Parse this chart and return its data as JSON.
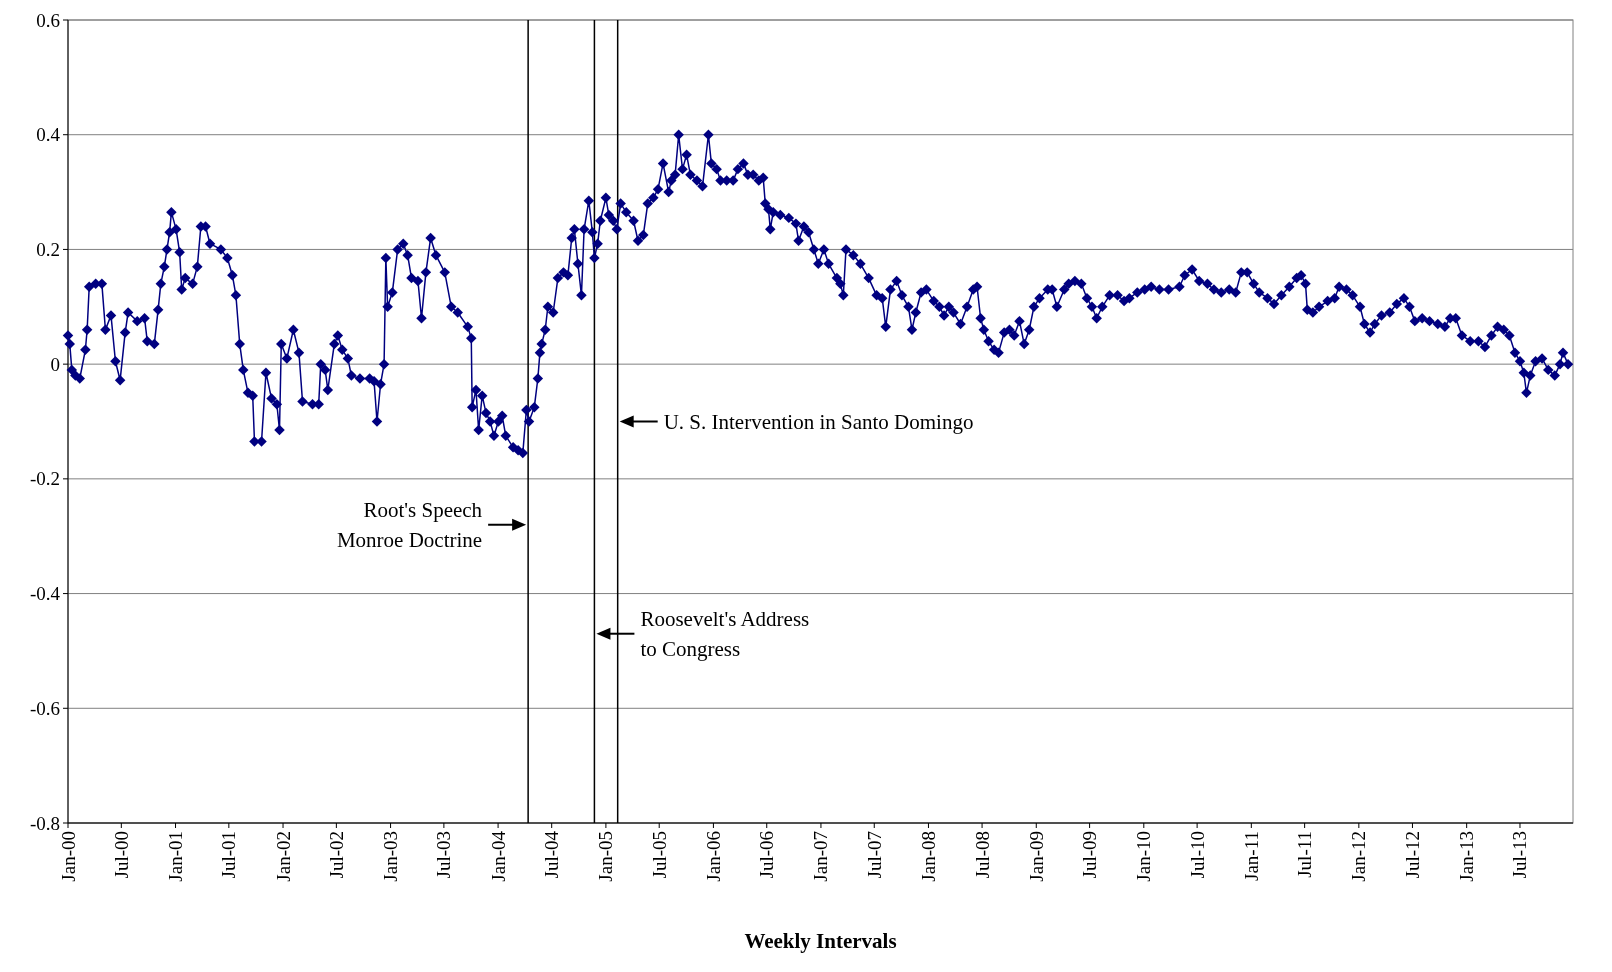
{
  "chart_data": {
    "type": "line",
    "xlabel": "Weekly Intervals",
    "xlim": [
      "1900-01-01",
      "1913-12-28"
    ],
    "xticks": [
      {
        "value": "1900-01",
        "label": "Jan-00"
      },
      {
        "value": "1900-07",
        "label": "Jul-00"
      },
      {
        "value": "1901-01",
        "label": "Jan-01"
      },
      {
        "value": "1901-07",
        "label": "Jul-01"
      },
      {
        "value": "1902-01",
        "label": "Jan-02"
      },
      {
        "value": "1902-07",
        "label": "Jul-02"
      },
      {
        "value": "1903-01",
        "label": "Jan-03"
      },
      {
        "value": "1903-07",
        "label": "Jul-03"
      },
      {
        "value": "1904-01",
        "label": "Jan-04"
      },
      {
        "value": "1904-07",
        "label": "Jul-04"
      },
      {
        "value": "1905-01",
        "label": "Jan-05"
      },
      {
        "value": "1905-07",
        "label": "Jul-05"
      },
      {
        "value": "1906-01",
        "label": "Jan-06"
      },
      {
        "value": "1906-07",
        "label": "Jul-06"
      },
      {
        "value": "1907-01",
        "label": "Jan-07"
      },
      {
        "value": "1907-07",
        "label": "Jul-07"
      },
      {
        "value": "1908-01",
        "label": "Jan-08"
      },
      {
        "value": "1908-07",
        "label": "Jul-08"
      },
      {
        "value": "1909-01",
        "label": "Jan-09"
      },
      {
        "value": "1909-07",
        "label": "Jul-09"
      },
      {
        "value": "1910-01",
        "label": "Jan-10"
      },
      {
        "value": "1910-07",
        "label": "Jul-10"
      },
      {
        "value": "1911-01",
        "label": "Jan-11"
      },
      {
        "value": "1911-07",
        "label": "Jul-11"
      },
      {
        "value": "1912-01",
        "label": "Jan-12"
      },
      {
        "value": "1912-07",
        "label": "Jul-12"
      },
      {
        "value": "1913-01",
        "label": "Jan-13"
      },
      {
        "value": "1913-07",
        "label": "Jul-13"
      }
    ],
    "ylim": [
      -0.8,
      0.6
    ],
    "yticks": [
      -0.8,
      -0.6,
      -0.4,
      -0.2,
      0,
      0.2,
      0.4,
      0.6
    ],
    "grid": "y",
    "marker": "diamond",
    "line_style": "solid",
    "ref_lines": [
      {
        "axis": "x",
        "value": "1904-04-12",
        "label": "Root's Speech\nMonroe Doctrine"
      },
      {
        "axis": "x",
        "value": "1904-11-23",
        "label": "Roosevelt's Address\nto Congress"
      },
      {
        "axis": "x",
        "value": "1905-02-10",
        "label": "U. S. Intervention in Santo Domingo"
      }
    ],
    "series": [
      {
        "color": "#000080",
        "x": [
          "1900-01-01",
          "1900-01-07",
          "1900-01-14",
          "1900-01-26",
          "1900-02-10",
          "1900-03-01",
          "1900-03-07",
          "1900-03-14",
          "1900-04-05",
          "1900-04-26",
          "1900-05-08",
          "1900-05-27",
          "1900-06-11",
          "1900-06-27",
          "1900-07-14",
          "1900-07-24",
          "1900-08-24",
          "1900-09-18",
          "1900-09-27",
          "1900-10-21",
          "1900-11-03",
          "1900-11-12",
          "1900-11-24",
          "1900-12-03",
          "1900-12-12",
          "1900-12-18",
          "1901-01-03",
          "1901-01-15",
          "1901-01-22",
          "1901-02-03",
          "1901-02-28",
          "1901-03-16",
          "1901-03-28",
          "1901-04-13",
          "1901-04-28",
          "1901-06-04",
          "1901-06-26",
          "1901-07-13",
          "1901-07-25",
          "1901-08-07",
          "1901-08-19",
          "1901-09-04",
          "1901-09-20",
          "1901-09-26",
          "1901-10-20",
          "1901-11-04",
          "1901-11-23",
          "1901-12-11",
          "1901-12-20",
          "1901-12-26",
          "1902-01-14",
          "1902-02-05",
          "1902-02-24",
          "1902-03-08",
          "1902-04-11",
          "1902-05-02",
          "1902-05-09",
          "1902-05-24",
          "1902-06-02",
          "1902-06-24",
          "1902-07-06",
          "1902-07-21",
          "1902-08-09",
          "1902-08-21",
          "1902-09-19",
          "1902-10-22",
          "1902-11-06",
          "1902-11-16",
          "1902-11-28",
          "1902-12-10",
          "1902-12-16",
          "1902-12-22",
          "1903-01-07",
          "1903-01-25",
          "1903-02-13",
          "1903-02-28",
          "1903-03-13",
          "1903-04-04",
          "1903-04-16",
          "1903-05-01",
          "1903-05-17",
          "1903-06-04",
          "1903-07-04",
          "1903-07-26",
          "1903-08-17",
          "1903-09-20",
          "1903-10-02",
          "1903-10-05",
          "1903-10-18",
          "1903-10-27",
          "1903-11-08",
          "1903-11-21",
          "1903-12-05",
          "1903-12-18",
          "1904-01-02",
          "1904-01-15",
          "1904-01-27",
          "1904-02-21",
          "1904-03-09",
          "1904-03-25",
          "1904-04-06",
          "1904-04-15",
          "1904-05-03",
          "1904-05-15",
          "1904-05-22",
          "1904-05-28",
          "1904-06-09",
          "1904-06-18",
          "1904-07-06",
          "1904-07-22",
          "1904-08-10",
          "1904-08-25",
          "1904-09-07",
          "1904-09-16",
          "1904-09-28",
          "1904-10-10",
          "1904-10-19",
          "1904-11-04",
          "1904-11-16",
          "1904-11-23",
          "1904-12-04",
          "1904-12-13",
          "1905-01-01",
          "1905-01-11",
          "1905-01-26",
          "1905-02-07",
          "1905-02-20",
          "1905-03-11",
          "1905-04-05",
          "1905-04-20",
          "1905-05-08",
          "1905-05-23",
          "1905-06-11",
          "1905-06-27",
          "1905-07-14",
          "1905-08-02",
          "1905-08-11",
          "1905-08-24",
          "1905-09-05",
          "1905-09-18",
          "1905-10-02",
          "1905-10-15",
          "1905-11-06",
          "1905-11-25",
          "1905-12-15",
          "1905-12-25",
          "1906-01-12",
          "1906-01-25",
          "1906-02-15",
          "1906-03-09",
          "1906-03-25",
          "1906-04-13",
          "1906-04-28",
          "1906-05-16",
          "1906-06-04",
          "1906-06-19",
          "1906-06-26",
          "1906-07-07",
          "1906-07-13",
          "1906-07-23",
          "1906-08-16",
          "1906-09-14",
          "1906-10-08",
          "1906-10-17",
          "1906-11-04",
          "1906-11-20",
          "1906-12-08",
          "1906-12-23",
          "1907-01-11",
          "1907-01-27",
          "1907-02-24",
          "1907-03-08",
          "1907-03-18",
          "1907-03-27",
          "1907-04-21",
          "1907-05-15",
          "1907-06-12",
          "1907-07-09",
          "1907-07-28",
          "1907-08-09",
          "1907-08-25",
          "1907-09-15",
          "1907-10-03",
          "1907-10-25",
          "1907-11-06",
          "1907-11-19",
          "1907-12-07",
          "1907-12-25",
          "1908-01-19",
          "1908-02-07",
          "1908-02-23",
          "1908-03-10",
          "1908-03-26",
          "1908-04-19",
          "1908-05-11",
          "1908-06-01",
          "1908-06-14",
          "1908-06-26",
          "1908-07-07",
          "1908-07-23",
          "1908-08-11",
          "1908-08-26",
          "1908-09-14",
          "1908-10-02",
          "1908-10-18",
          "1908-11-05",
          "1908-11-21",
          "1908-12-08",
          "1908-12-24",
          "1909-01-12",
          "1909-02-09",
          "1909-02-24",
          "1909-03-12",
          "1909-04-06",
          "1909-04-21",
          "1909-05-12",
          "1909-06-03",
          "1909-06-22",
          "1909-07-09",
          "1909-07-25",
          "1909-08-13",
          "1909-09-07",
          "1909-10-04",
          "1909-10-26",
          "1909-11-13",
          "1909-12-10",
          "1910-01-04",
          "1910-01-26",
          "1910-02-23",
          "1910-03-26",
          "1910-05-02",
          "1910-05-20",
          "1910-06-14",
          "1910-07-08",
          "1910-08-05",
          "1910-08-27",
          "1910-09-21",
          "1910-10-18",
          "1910-11-09",
          "1910-11-28",
          "1910-12-18",
          "1911-01-09",
          "1911-01-28",
          "1911-02-25",
          "1911-03-19",
          "1911-04-13",
          "1911-05-10",
          "1911-06-04",
          "1911-06-19",
          "1911-07-04",
          "1911-07-10",
          "1911-07-29",
          "1911-08-19",
          "1911-09-17",
          "1911-10-11",
          "1911-10-26",
          "1911-11-20",
          "1911-12-11",
          "1912-01-05",
          "1912-01-20",
          "1912-02-08",
          "1912-02-24",
          "1912-03-18",
          "1912-04-15",
          "1912-05-09",
          "1912-06-02",
          "1912-06-21",
          "1912-07-09",
          "1912-08-03",
          "1912-08-28",
          "1912-09-25",
          "1912-10-19",
          "1912-11-06",
          "1912-11-25",
          "1912-12-16",
          "1913-01-13",
          "1913-02-10",
          "1913-03-04",
          "1913-03-26",
          "1913-04-16",
          "1913-05-07",
          "1913-05-26",
          "1913-06-14",
          "1913-07-01",
          "1913-07-14",
          "1913-07-23",
          "1913-08-05",
          "1913-08-23",
          "1913-09-14",
          "1913-10-05",
          "1913-10-27",
          "1913-11-14",
          "1913-11-24",
          "1913-12-11"
        ],
        "values": [
          0.05,
          0.035,
          -0.01,
          -0.02,
          -0.025,
          0.025,
          0.06,
          0.135,
          0.14,
          0.14,
          0.06,
          0.085,
          0.005,
          -0.028,
          0.055,
          0.09,
          0.075,
          0.08,
          0.04,
          0.035,
          0.095,
          0.14,
          0.17,
          0.2,
          0.23,
          0.265,
          0.235,
          0.195,
          0.13,
          0.15,
          0.14,
          0.17,
          0.24,
          0.24,
          0.21,
          0.2,
          0.185,
          0.155,
          0.12,
          0.035,
          -0.01,
          -0.05,
          -0.055,
          -0.135,
          -0.135,
          -0.015,
          -0.06,
          -0.07,
          -0.115,
          0.035,
          0.01,
          0.06,
          0.02,
          -0.065,
          -0.07,
          -0.07,
          0,
          -0.01,
          -0.045,
          0.035,
          0.05,
          0.025,
          0.01,
          -0.02,
          -0.025,
          -0.025,
          -0.03,
          -0.1,
          -0.035,
          0,
          0.185,
          0.1,
          0.125,
          0.2,
          0.21,
          0.19,
          0.15,
          0.145,
          0.08,
          0.16,
          0.22,
          0.19,
          0.16,
          0.1,
          0.09,
          0.065,
          0.045,
          -0.075,
          -0.045,
          -0.115,
          -0.055,
          -0.085,
          -0.1,
          -0.125,
          -0.1,
          -0.09,
          -0.125,
          -0.145,
          -0.15,
          -0.155,
          -0.08,
          -0.1,
          -0.075,
          -0.025,
          0.02,
          0.035,
          0.06,
          0.1,
          0.09,
          0.15,
          0.16,
          0.155,
          0.22,
          0.235,
          0.175,
          0.12,
          0.235,
          0.285,
          0.23,
          0.185,
          0.21,
          0.25,
          0.29,
          0.26,
          0.25,
          0.235,
          0.28,
          0.265,
          0.25,
          0.215,
          0.225,
          0.28,
          0.29,
          0.305,
          0.35,
          0.3,
          0.32,
          0.33,
          0.4,
          0.34,
          0.365,
          0.33,
          0.32,
          0.31,
          0.4,
          0.35,
          0.34,
          0.32,
          0.32,
          0.32,
          0.34,
          0.35,
          0.33,
          0.33,
          0.32,
          0.325,
          0.28,
          0.27,
          0.235,
          0.265,
          0.26,
          0.255,
          0.245,
          0.215,
          0.24,
          0.23,
          0.2,
          0.175,
          0.2,
          0.175,
          0.15,
          0.14,
          0.12,
          0.2,
          0.19,
          0.175,
          0.15,
          0.12,
          0.115,
          0.065,
          0.13,
          0.145,
          0.12,
          0.1,
          0.06,
          0.09,
          0.125,
          0.13,
          0.11,
          0.1,
          0.085,
          0.1,
          0.09,
          0.07,
          0.1,
          0.13,
          0.135,
          0.08,
          0.06,
          0.04,
          0.025,
          0.02,
          0.055,
          0.06,
          0.05,
          0.075,
          0.035,
          0.06,
          0.1,
          0.115,
          0.13,
          0.13,
          0.1,
          0.13,
          0.14,
          0.145,
          0.14,
          0.115,
          0.1,
          0.08,
          0.1,
          0.12,
          0.12,
          0.11,
          0.115,
          0.125,
          0.13,
          0.135,
          0.13,
          0.13,
          0.135,
          0.155,
          0.165,
          0.145,
          0.14,
          0.13,
          0.125,
          0.13,
          0.125,
          0.16,
          0.16,
          0.14,
          0.125,
          0.115,
          0.105,
          0.12,
          0.135,
          0.15,
          0.155,
          0.14,
          0.095,
          0.09,
          0.1,
          0.11,
          0.115,
          0.135,
          0.13,
          0.12,
          0.1,
          0.07,
          0.055,
          0.07,
          0.085,
          0.09,
          0.105,
          0.115,
          0.1,
          0.075,
          0.08,
          0.075,
          0.07,
          0.065,
          0.08,
          0.08,
          0.05,
          0.04,
          0.04,
          0.03,
          0.05,
          0.065,
          0.06,
          0.05,
          0.02,
          0.005,
          -0.015,
          -0.05,
          -0.02,
          0.005,
          0.01,
          -0.01,
          -0.02,
          0,
          0.02,
          0
        ]
      }
    ]
  }
}
